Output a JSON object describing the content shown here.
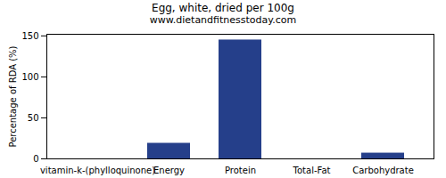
{
  "chart_data": {
    "type": "bar",
    "title": "Egg, white, dried per 100g",
    "subtitle": "www.dietandfitnesstoday.com",
    "ylabel": "Percentage of RDA (%)",
    "categories": [
      "vitamin-k-(phylloquinone)",
      "Energy",
      "Protein",
      "Total-Fat",
      "Carbohydrate"
    ],
    "values": [
      0,
      19,
      145,
      0,
      7
    ],
    "color": "#253f8a",
    "ylim": [
      0,
      152
    ],
    "yticks": [
      0,
      50,
      100,
      150
    ],
    "grid": false
  }
}
